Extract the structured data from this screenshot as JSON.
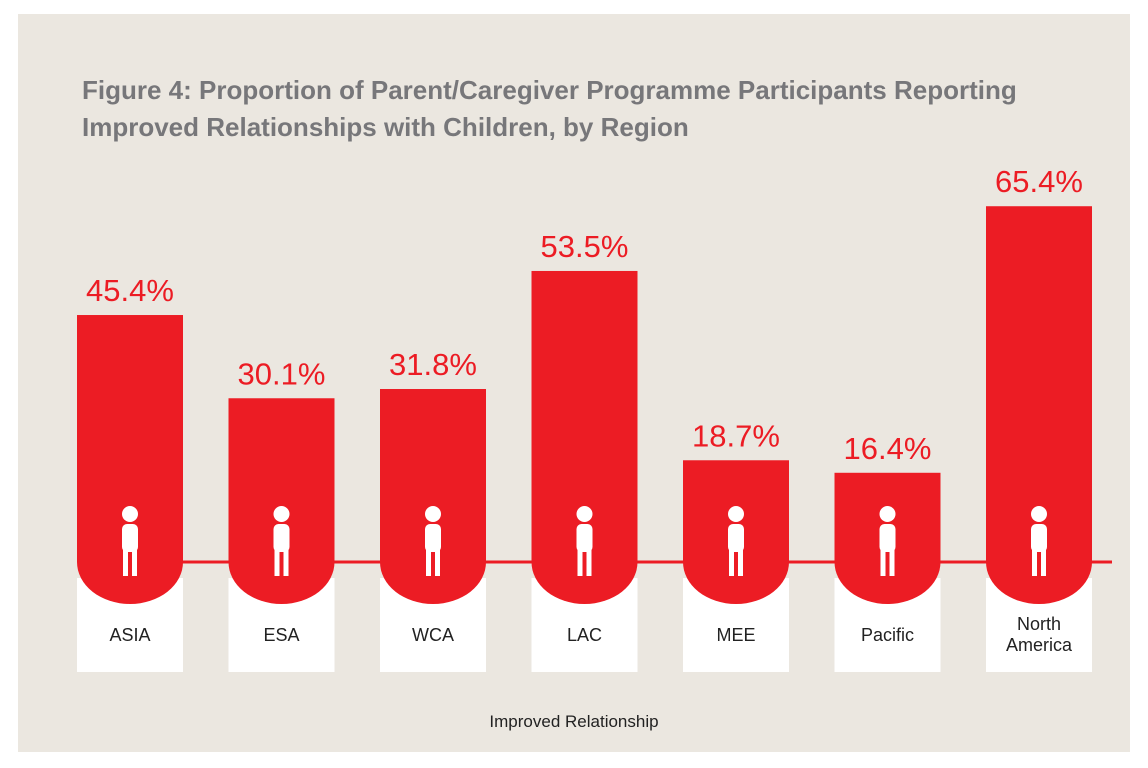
{
  "chart_data": {
    "type": "bar",
    "title": "Figure 4: Proportion of Parent/Caregiver Programme Participants Reporting Improved Relationships with Children, by Region",
    "categories": [
      "ASIA",
      "ESA",
      "WCA",
      "LAC",
      "MEE",
      "Pacific",
      "North America"
    ],
    "values": [
      45.4,
      30.1,
      31.8,
      53.5,
      18.7,
      16.4,
      65.4
    ],
    "value_labels": [
      "45.4%",
      "30.1%",
      "31.8%",
      "53.5%",
      "18.7%",
      "16.4%",
      "65.4%"
    ],
    "x_label": "Improved Relationship",
    "color": "#ec1c24"
  }
}
